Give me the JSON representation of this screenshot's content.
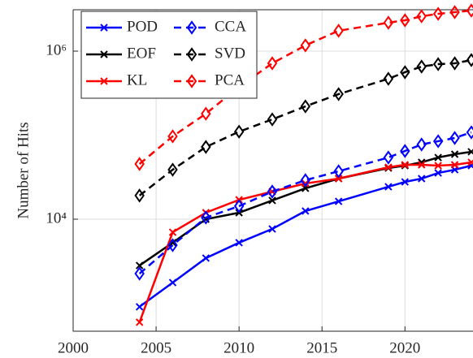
{
  "chart_data": {
    "type": "line",
    "ylabel": "Number of Hits",
    "x": [
      2004,
      2006,
      2008,
      2010,
      2012,
      2014,
      2016,
      2019,
      2020,
      2021,
      2022,
      2023,
      2024
    ],
    "series": [
      {
        "name": "POD",
        "color": "#0000ff",
        "marker": "x",
        "dashed": false,
        "values": [
          906,
          1760,
          3440,
          5250,
          7650,
          12500,
          16300,
          24300,
          27800,
          30400,
          35500,
          38800,
          43400
        ]
      },
      {
        "name": "EOF",
        "color": "#000000",
        "marker": "x",
        "dashed": false,
        "values": [
          2810,
          5250,
          10000,
          11950,
          16700,
          23300,
          30400,
          40600,
          43400,
          47500,
          54200,
          59300,
          63400
        ]
      },
      {
        "name": "KL",
        "color": "#ff0000",
        "marker": "x",
        "dashed": false,
        "values": [
          593,
          7000,
          11950,
          17000,
          21300,
          26600,
          30400,
          41500,
          44400,
          44400,
          43400,
          44400,
          47500
        ]
      },
      {
        "name": "CCA",
        "color": "#0000ff",
        "marker": "diamond",
        "dashed": true,
        "values": [
          2250,
          4900,
          10450,
          14300,
          21300,
          29100,
          37200,
          54200,
          64800,
          77400,
          84700,
          92500,
          108000
        ]
      },
      {
        "name": "SVD",
        "color": "#000000",
        "marker": "diamond",
        "dashed": true,
        "values": [
          19100,
          38800,
          72400,
          110000,
          154000,
          220000,
          308000,
          469000,
          561000,
          655000,
          700000,
          716000,
          783000
        ]
      },
      {
        "name": "PCA",
        "color": "#ff0000",
        "marker": "diamond",
        "dashed": true,
        "values": [
          45400,
          96800,
          180000,
          376000,
          716000,
          1170000,
          1750000,
          2180000,
          2330000,
          2600000,
          2780000,
          2910000,
          3040000
        ]
      }
    ],
    "xlim": [
      2000,
      2024.1
    ],
    "xticks": [
      2000,
      2005,
      2010,
      2015,
      2020
    ],
    "ylim": [
      464,
      3110000
    ],
    "yscale": "log",
    "yticks": [
      {
        "value": 10000,
        "label": "10⁴"
      },
      {
        "value": 1000000,
        "label": "10⁶"
      }
    ],
    "grid": true,
    "legend": "upper left",
    "legend_columns": 2
  }
}
